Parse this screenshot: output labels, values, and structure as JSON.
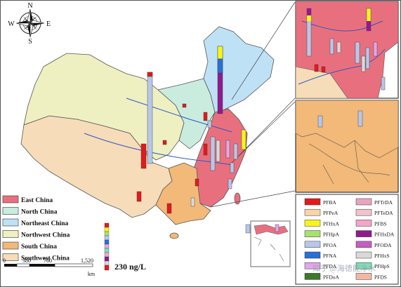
{
  "compass": {
    "north": "N",
    "east": "E",
    "south": "S",
    "west": "W"
  },
  "region_legend": [
    {
      "label": "East China",
      "color": "#e8707e"
    },
    {
      "label": "North China",
      "color": "#c9ecdf"
    },
    {
      "label": "Northeast China",
      "color": "#bfe1f5"
    },
    {
      "label": "Northwest China",
      "color": "#eef0c2"
    },
    {
      "label": "South China",
      "color": "#f2b978"
    },
    {
      "label": "Southwest China",
      "color": "#f6dcb8"
    }
  ],
  "scale_bar": {
    "ticks": [
      "0",
      "380",
      "760",
      "1,520"
    ],
    "unit": "km"
  },
  "bar_scale_label": "230 ng/L",
  "compound_legend": [
    {
      "label": "PFBA",
      "color": "#e31a1c"
    },
    {
      "label": "PFTrDA",
      "color": "#e7a4c0"
    },
    {
      "label": "PFPeA",
      "color": "#f9d4a8"
    },
    {
      "label": "PFTeDA",
      "color": "#f0c4cc"
    },
    {
      "label": "PFHxA",
      "color": "#f5f51e"
    },
    {
      "label": "PFBS",
      "color": "#f2a6c9"
    },
    {
      "label": "PFHpA",
      "color": "#a8e26c"
    },
    {
      "label": "PFHxDA",
      "color": "#8e1c8e"
    },
    {
      "label": "PFOA",
      "color": "#b8c7e8"
    },
    {
      "label": "PFODA",
      "color": "#c75cc4"
    },
    {
      "label": "PFNA",
      "color": "#2a6fd6"
    },
    {
      "label": "PFHxS",
      "color": "#d9d9d9"
    },
    {
      "label": "PFDA",
      "color": "#e3a6e8"
    },
    {
      "label": "PFHpS",
      "color": "#7ee0b4"
    },
    {
      "label": "PFDoA",
      "color": "#3d7a28"
    },
    {
      "label": "PFDS",
      "color": "#f3b7a4"
    }
  ],
  "watermark": "知乎 @海德能净水"
}
